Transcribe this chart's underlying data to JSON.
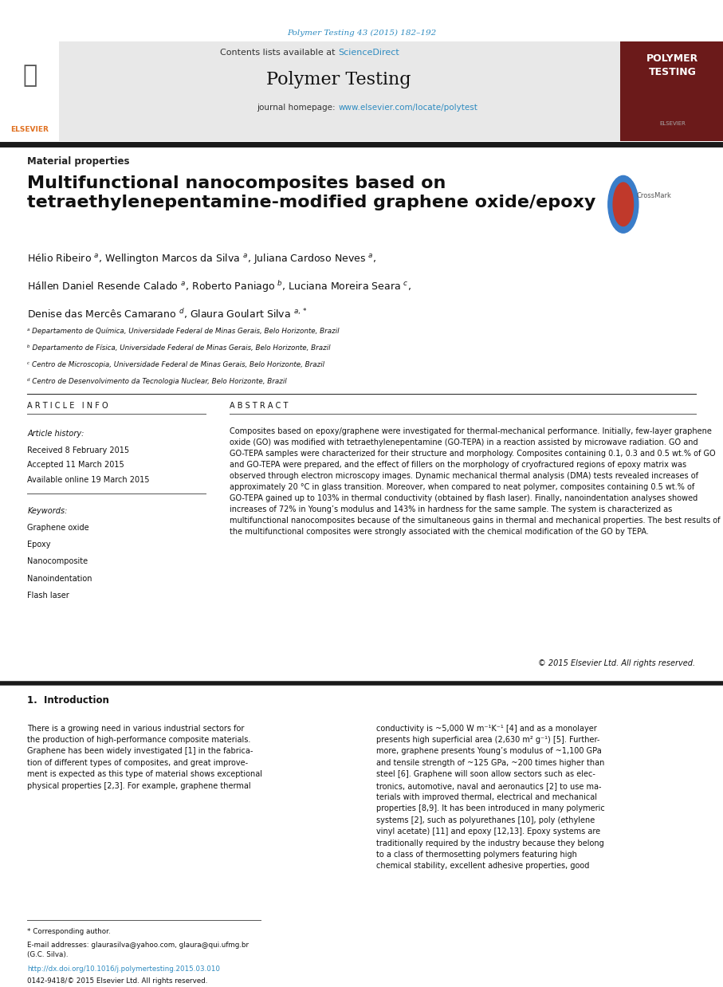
{
  "bg_color": "#ffffff",
  "page_width": 9.07,
  "page_height": 12.38,
  "journal_ref": "Polymer Testing 43 (2015) 182–192",
  "journal_ref_color": "#2e8bc0",
  "sciencedirect_color": "#2e8bc0",
  "polymer_testing_badge_bg": "#6b1a1a",
  "section_label": "Material properties",
  "paper_title_line1": "Multifunctional nanocomposites based on",
  "paper_title_line2": "tetraethylenepentamine-modified graphene oxide/epoxy",
  "affil_a": "ᵃ Departamento de Química, Universidade Federal de Minas Gerais, Belo Horizonte, Brazil",
  "affil_b": "ᵇ Departamento de Física, Universidade Federal de Minas Gerais, Belo Horizonte, Brazil",
  "affil_c": "ᶜ Centro de Microscopia, Universidade Federal de Minas Gerais, Belo Horizonte, Brazil",
  "affil_d": "ᵈ Centro de Desenvolvimento da Tecnologia Nuclear, Belo Horizonte, Brazil",
  "article_info_header": "A R T I C L E   I N F O",
  "article_history_label": "Article history:",
  "received": "Received 8 February 2015",
  "accepted": "Accepted 11 March 2015",
  "available": "Available online 19 March 2015",
  "keywords_label": "Keywords:",
  "keywords": [
    "Graphene oxide",
    "Epoxy",
    "Nanocomposite",
    "Nanoindentation",
    "Flash laser"
  ],
  "abstract_header": "A B S T R A C T",
  "abstract_text": "Composites based on epoxy/graphene were investigated for thermal-mechanical performance. Initially, few-layer graphene oxide (GO) was modified with tetraethylenepentamine (GO-TEPA) in a reaction assisted by microwave radiation. GO and GO-TEPA samples were characterized for their structure and morphology. Composites containing 0.1, 0.3 and 0.5 wt.% of GO and GO-TEPA were prepared, and the effect of fillers on the morphology of cryofractured regions of epoxy matrix was observed through electron microscopy images. Dynamic mechanical thermal analysis (DMA) tests revealed increases of approximately 20 °C in glass transition. Moreover, when compared to neat polymer, composites containing 0.5 wt.% of GO-TEPA gained up to 103% in thermal conductivity (obtained by flash laser). Finally, nanoindentation analyses showed increases of 72% in Young’s modulus and 143% in hardness for the same sample. The system is characterized as multifunctional nanocomposites because of the simultaneous gains in thermal and mechanical properties. The best results of the multifunctional composites were strongly associated with the chemical modification of the GO by TEPA.",
  "copyright": "© 2015 Elsevier Ltd. All rights reserved.",
  "intro_header": "1.  Introduction",
  "intro_col1": "There is a growing need in various industrial sectors for\nthe production of high-performance composite materials.\nGraphene has been widely investigated [1] in the fabrica-\ntion of different types of composites, and great improve-\nment is expected as this type of material shows exceptional\nphysical properties [2,3]. For example, graphene thermal",
  "intro_col2": "conductivity is ~5,000 W m⁻¹K⁻¹ [4] and as a monolayer\npresents high superficial area (2,630 m² g⁻¹) [5]. Further-\nmore, graphene presents Young’s modulus of ~1,100 GPa\nand tensile strength of ~125 GPa, ~200 times higher than\nsteel [6]. Graphene will soon allow sectors such as elec-\ntronics, automotive, naval and aeronautics [2] to use ma-\nterials with improved thermal, electrical and mechanical\nproperties [8,9]. It has been introduced in many polymeric\nsystems [2], such as polyurethanes [10], poly (ethylene\nvinyl acetate) [11] and epoxy [12,13]. Epoxy systems are\ntraditionally required by the industry because they belong\nto a class of thermosetting polymers featuring high\nchemical stability, excellent adhesive properties, good",
  "corr_author": "* Corresponding author.",
  "email_label": "E-mail addresses: glaurasilva@yahoo.com, glaura@qui.ufmg.br\n(G.C. Silva).",
  "doi_text": "http://dx.doi.org/10.1016/j.polymertesting.2015.03.010",
  "issn_text": "0142-9418/© 2015 Elsevier Ltd. All rights reserved.",
  "dark_bar_color": "#1a1a1a",
  "thin_line_color": "#555555"
}
